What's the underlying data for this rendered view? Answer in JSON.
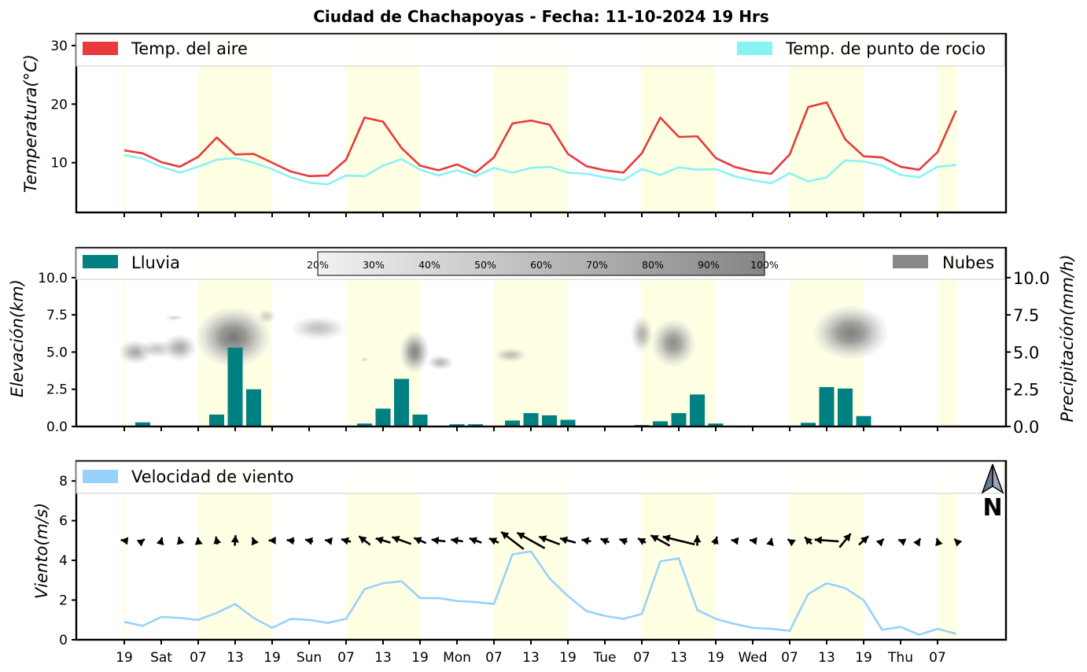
{
  "title": "Ciudad de Chachapoyas   -   Fecha: 11-10-2024 19 Hrs",
  "colors": {
    "air": "#e8393c",
    "dew": "#88f3f3",
    "rain": "#008080",
    "wind": "#96d2fa",
    "day_band": "#ffffe3",
    "cloud_legend": "#888888"
  },
  "x_ticks": [
    "19",
    "Sat",
    "07",
    "13",
    "19",
    "Sun",
    "07",
    "13",
    "19",
    "Mon",
    "07",
    "13",
    "19",
    "Tue",
    "07",
    "13",
    "19",
    "Wed",
    "07",
    "13",
    "19",
    "Thu",
    "07"
  ],
  "day_bands": [
    [
      -0.05,
      0.07
    ],
    [
      4,
      8
    ],
    [
      12,
      16
    ],
    [
      20,
      24
    ],
    [
      28,
      32
    ],
    [
      36,
      40
    ],
    [
      44,
      45.05
    ]
  ],
  "chart_data": [
    {
      "type": "line",
      "ylabel": "Temperatura(°C)",
      "ylim": [
        1.5,
        32
      ],
      "yticks": [
        10,
        20,
        30
      ],
      "series": [
        {
          "name": "Temp. del aire",
          "values": [
            12.1,
            11.6,
            10.1,
            9.3,
            11.0,
            14.3,
            11.4,
            11.5,
            10.0,
            8.5,
            7.7,
            7.8,
            10.5,
            17.7,
            17.0,
            12.5,
            9.5,
            8.7,
            9.7,
            8.3,
            10.9,
            16.7,
            17.2,
            16.5,
            11.5,
            9.4,
            8.7,
            8.3,
            11.6,
            17.7,
            14.4,
            14.5,
            10.8,
            9.3,
            8.5,
            8.1,
            11.4,
            19.5,
            20.3,
            14.0,
            11.1,
            10.9,
            9.3,
            8.8,
            11.8,
            18.9
          ]
        },
        {
          "name": "Temp. de punto de rocio",
          "values": [
            11.3,
            10.7,
            9.3,
            8.3,
            9.3,
            10.5,
            10.8,
            10.0,
            8.9,
            7.5,
            6.6,
            6.3,
            7.8,
            7.7,
            9.5,
            10.6,
            8.8,
            7.8,
            8.7,
            7.7,
            9.1,
            8.3,
            9.1,
            9.3,
            8.3,
            8.1,
            7.5,
            7.0,
            8.9,
            7.9,
            9.2,
            8.8,
            8.9,
            7.7,
            7.0,
            6.5,
            8.2,
            6.8,
            7.5,
            10.4,
            10.2,
            9.5,
            7.9,
            7.5,
            9.3,
            9.6
          ]
        }
      ]
    },
    {
      "type": "bar",
      "ylabel": "Elevación(km)",
      "ylabel_right": "Precipitación(mm/h)",
      "ylim": [
        0,
        12
      ],
      "yticks": [
        "0.0",
        "2.5",
        "5.0",
        "7.5",
        "10.0"
      ],
      "series": [
        {
          "name": "Lluvia",
          "values": [
            0,
            0.28,
            0.05,
            0.05,
            0,
            0.8,
            5.3,
            2.5,
            0.05,
            0,
            0,
            0,
            0,
            0.2,
            1.2,
            3.2,
            0.8,
            0,
            0.15,
            0.15,
            0,
            0.4,
            0.9,
            0.75,
            0.45,
            0,
            0,
            0,
            0.1,
            0.35,
            0.9,
            2.15,
            0.2,
            0,
            0,
            0,
            0,
            0.25,
            2.65,
            2.55,
            0.7,
            0,
            0,
            0,
            0.05,
            0
          ]
        }
      ],
      "cloud_legend": "Nubes",
      "colorbar_labels": [
        "20%",
        "30%",
        "40%",
        "50%",
        "60%",
        "70%",
        "80%",
        "90%",
        "100%"
      ],
      "clouds": [
        {
          "x": 0.6,
          "y": 5.0,
          "rx": 0.9,
          "ry": 0.8,
          "cover": 0.6
        },
        {
          "x": 1.8,
          "y": 5.2,
          "rx": 1.0,
          "ry": 0.6,
          "cover": 0.4
        },
        {
          "x": 3.0,
          "y": 5.3,
          "rx": 0.9,
          "ry": 0.9,
          "cover": 0.6
        },
        {
          "x": 2.7,
          "y": 7.3,
          "rx": 0.5,
          "ry": 0.2,
          "cover": 0.3
        },
        {
          "x": 5.9,
          "y": 6.0,
          "rx": 2.0,
          "ry": 2.0,
          "cover": 0.95
        },
        {
          "x": 7.7,
          "y": 7.4,
          "rx": 0.5,
          "ry": 0.5,
          "cover": 0.35
        },
        {
          "x": 10.5,
          "y": 6.6,
          "rx": 1.5,
          "ry": 0.8,
          "cover": 0.45
        },
        {
          "x": 13.0,
          "y": 4.5,
          "rx": 0.2,
          "ry": 0.15,
          "cover": 0.3
        },
        {
          "x": 15.7,
          "y": 5.0,
          "rx": 0.8,
          "ry": 1.4,
          "cover": 0.85
        },
        {
          "x": 17.1,
          "y": 4.3,
          "rx": 0.7,
          "ry": 0.5,
          "cover": 0.5
        },
        {
          "x": 20.9,
          "y": 4.8,
          "rx": 0.9,
          "ry": 0.5,
          "cover": 0.45
        },
        {
          "x": 28.0,
          "y": 6.2,
          "rx": 0.6,
          "ry": 1.2,
          "cover": 0.55
        },
        {
          "x": 29.7,
          "y": 5.6,
          "rx": 1.2,
          "ry": 1.6,
          "cover": 0.8
        },
        {
          "x": 39.3,
          "y": 6.3,
          "rx": 2.0,
          "ry": 1.8,
          "cover": 0.9
        }
      ]
    },
    {
      "type": "line",
      "ylabel": "Viento(m/s)",
      "ylim": [
        0,
        9
      ],
      "yticks": [
        0,
        2,
        4,
        6,
        8
      ],
      "series": [
        {
          "name": "Velocidad de viento",
          "values": [
            0.9,
            0.7,
            1.15,
            1.1,
            1.0,
            1.35,
            1.8,
            1.1,
            0.6,
            1.05,
            1.0,
            0.85,
            1.05,
            2.55,
            2.85,
            2.95,
            2.1,
            2.1,
            1.95,
            1.9,
            1.8,
            4.3,
            4.45,
            3.1,
            2.2,
            1.45,
            1.2,
            1.05,
            1.3,
            3.95,
            4.1,
            1.5,
            1.05,
            0.8,
            0.6,
            0.55,
            0.45,
            2.3,
            2.85,
            2.6,
            2.0,
            0.5,
            0.65,
            0.25,
            0.55,
            0.3
          ]
        }
      ],
      "north_label": "N",
      "wind_arrows": [
        {
          "dx": 0.4,
          "dy": 0.05
        },
        {
          "dx": -0.2,
          "dy": 0.15
        },
        {
          "dx": -0.1,
          "dy": 0.35
        },
        {
          "dx": 0.1,
          "dy": 0.4
        },
        {
          "dx": 0.05,
          "dy": 0.35
        },
        {
          "dx": 0.1,
          "dy": 0.45
        },
        {
          "dx": -0.05,
          "dy": 0.6
        },
        {
          "dx": 0.15,
          "dy": 0.35
        },
        {
          "dx": 0.4,
          "dy": 0.0
        },
        {
          "dx": 0.45,
          "dy": 0.05
        },
        {
          "dx": 0.45,
          "dy": 0.1
        },
        {
          "dx": 0.3,
          "dy": 0.05
        },
        {
          "dx": 0.55,
          "dy": 0.15
        },
        {
          "dx": 0.65,
          "dy": 0.5
        },
        {
          "dx": 0.85,
          "dy": 0.25
        },
        {
          "dx": 1.1,
          "dy": 0.4
        },
        {
          "dx": 0.7,
          "dy": 0.3
        },
        {
          "dx": 0.8,
          "dy": 0.1
        },
        {
          "dx": 0.7,
          "dy": 0.1
        },
        {
          "dx": 0.7,
          "dy": 0.25
        },
        {
          "dx": 0.55,
          "dy": 0.25
        },
        {
          "dx": 1.3,
          "dy": 1.0
        },
        {
          "dx": 1.6,
          "dy": 0.9
        },
        {
          "dx": 1.2,
          "dy": 0.45
        },
        {
          "dx": 0.9,
          "dy": 0.25
        },
        {
          "dx": 0.55,
          "dy": 0.1
        },
        {
          "dx": 0.5,
          "dy": 0.2
        },
        {
          "dx": 0.45,
          "dy": 0.15
        },
        {
          "dx": 0.45,
          "dy": 0.25
        },
        {
          "dx": 1.1,
          "dy": 0.6
        },
        {
          "dx": 1.85,
          "dy": 0.45
        },
        {
          "dx": 0.0,
          "dy": 0.6
        },
        {
          "dx": -0.15,
          "dy": 0.45
        },
        {
          "dx": 0.35,
          "dy": 0.05
        },
        {
          "dx": 0.35,
          "dy": 0.05
        },
        {
          "dx": -0.05,
          "dy": 0.2
        },
        {
          "dx": 0.15,
          "dy": 0.1
        },
        {
          "dx": 0.4,
          "dy": 0.4
        },
        {
          "dx": 1.4,
          "dy": 0.1
        },
        {
          "dx": -0.65,
          "dy": 0.8
        },
        {
          "dx": -0.55,
          "dy": 0.5
        },
        {
          "dx": -0.15,
          "dy": 0.15
        },
        {
          "dx": 0.25,
          "dy": 0.1
        },
        {
          "dx": -0.1,
          "dy": 0.15
        },
        {
          "dx": 0.05,
          "dy": 0.15
        },
        {
          "dx": 0.1,
          "dy": 0.1
        }
      ]
    }
  ]
}
